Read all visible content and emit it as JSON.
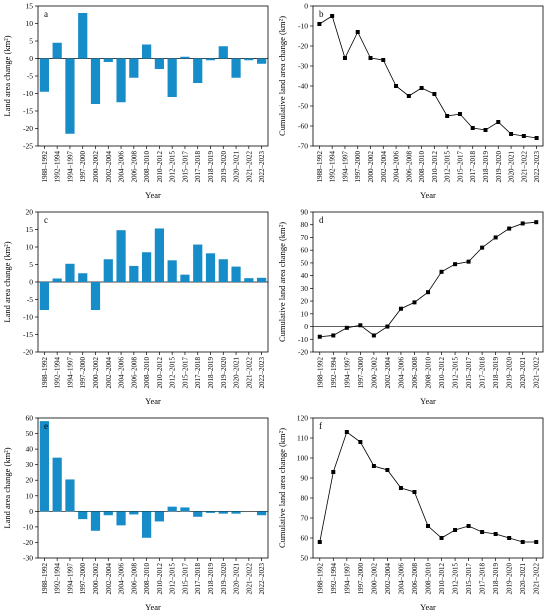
{
  "chart_data": [
    {
      "type": "bar",
      "panel_label": "a",
      "x_label": "Year",
      "y_label": "Land area change (km²)",
      "categories": [
        "1988–1992",
        "1992–1994",
        "1994–1997",
        "1997–2000",
        "2000–2002",
        "2002–2004",
        "2004–2006",
        "2006–2008",
        "2008–2010",
        "2010–2012",
        "2012–2015",
        "2015–2017",
        "2017–2018",
        "2018–2019",
        "2019–2020",
        "2020–2021",
        "2021–2022",
        "2022–2023"
      ],
      "values": [
        -9.5,
        4.5,
        -21.5,
        13,
        -13,
        -1,
        -12.5,
        -5.5,
        4,
        -3,
        -11,
        0.5,
        -7,
        -0.5,
        3.5,
        -5.5,
        -0.5,
        -1.5
      ],
      "color": "#168cc8",
      "ylim": [
        -25,
        15
      ],
      "yticks": [
        -25,
        -20,
        -15,
        -10,
        -5,
        0,
        5,
        10,
        15
      ]
    },
    {
      "type": "line",
      "panel_label": "b",
      "x_label": "Year",
      "y_label": "Cumulative land area change (km²)",
      "categories": [
        "1988–1992",
        "1992–1994",
        "1994–1997",
        "1997–2000",
        "2000–2002",
        "2002–2004",
        "2004–2006",
        "2006–2008",
        "2008–2010",
        "2010–2012",
        "2012–2015",
        "2015–2017",
        "2017–2018",
        "2018–2019",
        "2019–2020",
        "2020–2021",
        "2021–2022",
        "2022–2023"
      ],
      "values": [
        -9,
        -5,
        -26,
        -13,
        -26,
        -27,
        -40,
        -45,
        -41,
        -44,
        -55,
        -54,
        -61,
        -62,
        -58,
        -64,
        -65,
        -66
      ],
      "color": "#000000",
      "ylim": [
        -70,
        0
      ],
      "yticks": [
        -70,
        -60,
        -50,
        -40,
        -30,
        -20,
        -10,
        0
      ]
    },
    {
      "type": "bar",
      "panel_label": "c",
      "x_label": "Year",
      "y_label": "Land area change (km²)",
      "categories": [
        "1988–1992",
        "1992–1994",
        "1994–1997",
        "1997–2000",
        "2000–2002",
        "2002–2004",
        "2004–2006",
        "2006–2008",
        "2008–2010",
        "2010–2012",
        "2012–2015",
        "2015–2017",
        "2017–2018",
        "2018–2019",
        "2019–2020",
        "2020–2021",
        "2021–2022",
        "2022–2023"
      ],
      "values": [
        -8,
        1,
        5.2,
        2.5,
        -8,
        6.5,
        14.8,
        4.6,
        8.5,
        15.3,
        6.2,
        2.1,
        10.7,
        8.2,
        6.5,
        4.4,
        1.1,
        1.2
      ],
      "color": "#168cc8",
      "ylim": [
        -20,
        20
      ],
      "yticks": [
        -20,
        -15,
        -10,
        -5,
        0,
        5,
        10,
        15,
        20
      ]
    },
    {
      "type": "line",
      "panel_label": "d",
      "x_label": "Year",
      "y_label": "Cumulative land area change (km²)",
      "categories": [
        "1988–1992",
        "1992–1994",
        "1994–1997",
        "1997–2000",
        "2000–2002",
        "2002–2004",
        "2004–2006",
        "2006–2008",
        "2008–2010",
        "2010–2012",
        "2012–2015",
        "2015–2017",
        "2017–2018",
        "2018–2019",
        "2019–2020",
        "2020–2021",
        "2021–2022"
      ],
      "values": [
        -8,
        -7,
        -1,
        1,
        -7,
        0,
        14,
        19,
        27,
        43,
        49,
        51,
        62,
        70,
        77,
        81,
        82
      ],
      "color": "#000000",
      "ylim": [
        -20,
        90
      ],
      "yticks": [
        -20,
        -10,
        0,
        10,
        20,
        30,
        40,
        50,
        60,
        70,
        80,
        90
      ],
      "zero_line": true
    },
    {
      "type": "bar",
      "panel_label": "e",
      "x_label": "Year",
      "y_label": "Land area change (km²)",
      "categories": [
        "1988–1992",
        "1992–1994",
        "1994–1997",
        "1997–2000",
        "2000–2002",
        "2002–2004",
        "2004–2006",
        "2006–2008",
        "2008–2010",
        "2010–2012",
        "2012–2015",
        "2015–2017",
        "2017–2018",
        "2018–2019",
        "2019–2020",
        "2020–2021",
        "2021–2022",
        "2022–2023"
      ],
      "values": [
        58,
        34.5,
        20.5,
        -5,
        -12.5,
        -2.5,
        -9,
        -2,
        -17,
        -6.5,
        3,
        2.5,
        -3.5,
        -1,
        -1.5,
        -1.5,
        0,
        -2.5
      ],
      "color": "#168cc8",
      "ylim": [
        -30,
        60
      ],
      "yticks": [
        -30,
        -20,
        -10,
        0,
        10,
        20,
        30,
        40,
        50,
        60
      ]
    },
    {
      "type": "line",
      "panel_label": "f",
      "x_label": "Year",
      "y_label": "Cumulative land area change (km²)",
      "categories": [
        "1988–1992",
        "1992–1994",
        "1994–1997",
        "1997–2000",
        "2000–2002",
        "2002–2004",
        "2004–2006",
        "2006–2008",
        "2008–2010",
        "2010–2012",
        "2012–2015",
        "2015–2017",
        "2017–2018",
        "2018–2019",
        "2019–2020",
        "2020–2021",
        "2021–2022"
      ],
      "values": [
        58,
        93,
        113,
        108,
        96,
        94,
        85,
        83,
        66,
        60,
        64,
        66,
        63,
        62,
        60,
        58,
        58
      ],
      "color": "#000000",
      "ylim": [
        50,
        120
      ],
      "yticks": [
        50,
        60,
        70,
        80,
        90,
        100,
        110,
        120
      ]
    }
  ]
}
